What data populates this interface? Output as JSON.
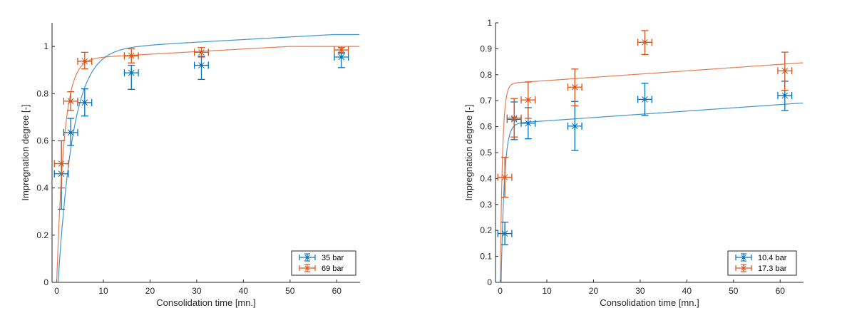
{
  "chart_data": [
    {
      "type": "scatter",
      "title": "",
      "xlabel": "Consolidation time [mn.]",
      "ylabel": "Impregnation degree [-]",
      "xlim": [
        -1,
        65
      ],
      "ylim": [
        0,
        1.1
      ],
      "xticks": [
        0,
        10,
        20,
        30,
        40,
        50,
        60
      ],
      "yticks": [
        0,
        0.2,
        0.4,
        0.6,
        0.8,
        1
      ],
      "ytick_labels": [
        "0",
        "0.2",
        "0.4",
        "0.6",
        "0.8",
        "1"
      ],
      "xtick_labels": [
        "0",
        "10",
        "20",
        "30",
        "40",
        "50",
        "60"
      ],
      "box": false,
      "grid": false,
      "legend_position": "bottom-right",
      "series": [
        {
          "name": "35 bar",
          "color": "#0072BD",
          "x": [
            1,
            3,
            6,
            16,
            31,
            61
          ],
          "y": [
            0.46,
            0.635,
            0.762,
            0.888,
            0.92,
            0.955
          ],
          "y_err_low": [
            0.31,
            0.58,
            0.705,
            0.818,
            0.86,
            0.91
          ],
          "y_err_high": [
            0.6,
            0.695,
            0.82,
            0.92,
            0.958,
            0.97
          ],
          "x_err": 1.5,
          "fit": {
            "y_max": 0.985,
            "tau": 3.2,
            "slope": 0.0011,
            "t0": 0.3
          }
        },
        {
          "name": "69 bar",
          "color": "#D95319",
          "x": [
            1,
            3,
            6,
            16,
            31,
            61
          ],
          "y": [
            0.503,
            0.768,
            0.937,
            0.96,
            0.975,
            0.985
          ],
          "y_err_low": [
            0.4,
            0.728,
            0.905,
            0.93,
            0.955,
            0.975
          ],
          "y_err_high": [
            0.6,
            0.808,
            0.975,
            0.99,
            0.995,
            0.995
          ],
          "x_err": 1.5,
          "fit": {
            "y_max": 0.945,
            "tau": 1.6,
            "slope": 0.0011,
            "t0": 0.0,
            "cap": 1.0
          }
        }
      ]
    },
    {
      "type": "scatter",
      "title": "",
      "xlabel": "Consolidation time [mn.]",
      "ylabel": "Impregnation degree [-]",
      "xlim": [
        -1,
        65
      ],
      "ylim": [
        0,
        1
      ],
      "xticks": [
        0,
        10,
        20,
        30,
        40,
        50,
        60
      ],
      "yticks": [
        0,
        0.1,
        0.2,
        0.3,
        0.4,
        0.5,
        0.6,
        0.7,
        0.8,
        0.9,
        1
      ],
      "ytick_labels": [
        "0",
        "0.1",
        "0.2",
        "0.3",
        "0.4",
        "0.5",
        "0.6",
        "0.7",
        "0.8",
        "0.9",
        "1"
      ],
      "xtick_labels": [
        "0",
        "10",
        "20",
        "30",
        "40",
        "50",
        "60"
      ],
      "box": false,
      "grid": false,
      "legend_position": "bottom-right",
      "series": [
        {
          "name": "10.4 bar",
          "color": "#0072BD",
          "x": [
            1,
            3,
            6,
            16,
            31,
            61
          ],
          "y": [
            0.188,
            0.628,
            0.613,
            0.602,
            0.705,
            0.72
          ],
          "y_err_low": [
            0.145,
            0.55,
            0.553,
            0.508,
            0.643,
            0.662
          ],
          "y_err_high": [
            0.232,
            0.695,
            0.673,
            0.697,
            0.767,
            0.775
          ],
          "x_err": 1.5,
          "fit": {
            "y_max": 0.61,
            "tau": 0.7,
            "slope": 0.00125,
            "t0": 0.2
          }
        },
        {
          "name": "17.3 bar",
          "color": "#D95319",
          "x": [
            1,
            3,
            6,
            16,
            31,
            61
          ],
          "y": [
            0.405,
            0.633,
            0.703,
            0.752,
            0.925,
            0.815
          ],
          "y_err_low": [
            0.328,
            0.56,
            0.632,
            0.68,
            0.878,
            0.74
          ],
          "y_err_high": [
            0.482,
            0.708,
            0.772,
            0.822,
            0.97,
            0.887
          ],
          "x_err": 1.5,
          "fit": {
            "y_max": 0.765,
            "tau": 0.5,
            "slope": 0.00125,
            "t0": 0.0
          }
        }
      ]
    }
  ]
}
